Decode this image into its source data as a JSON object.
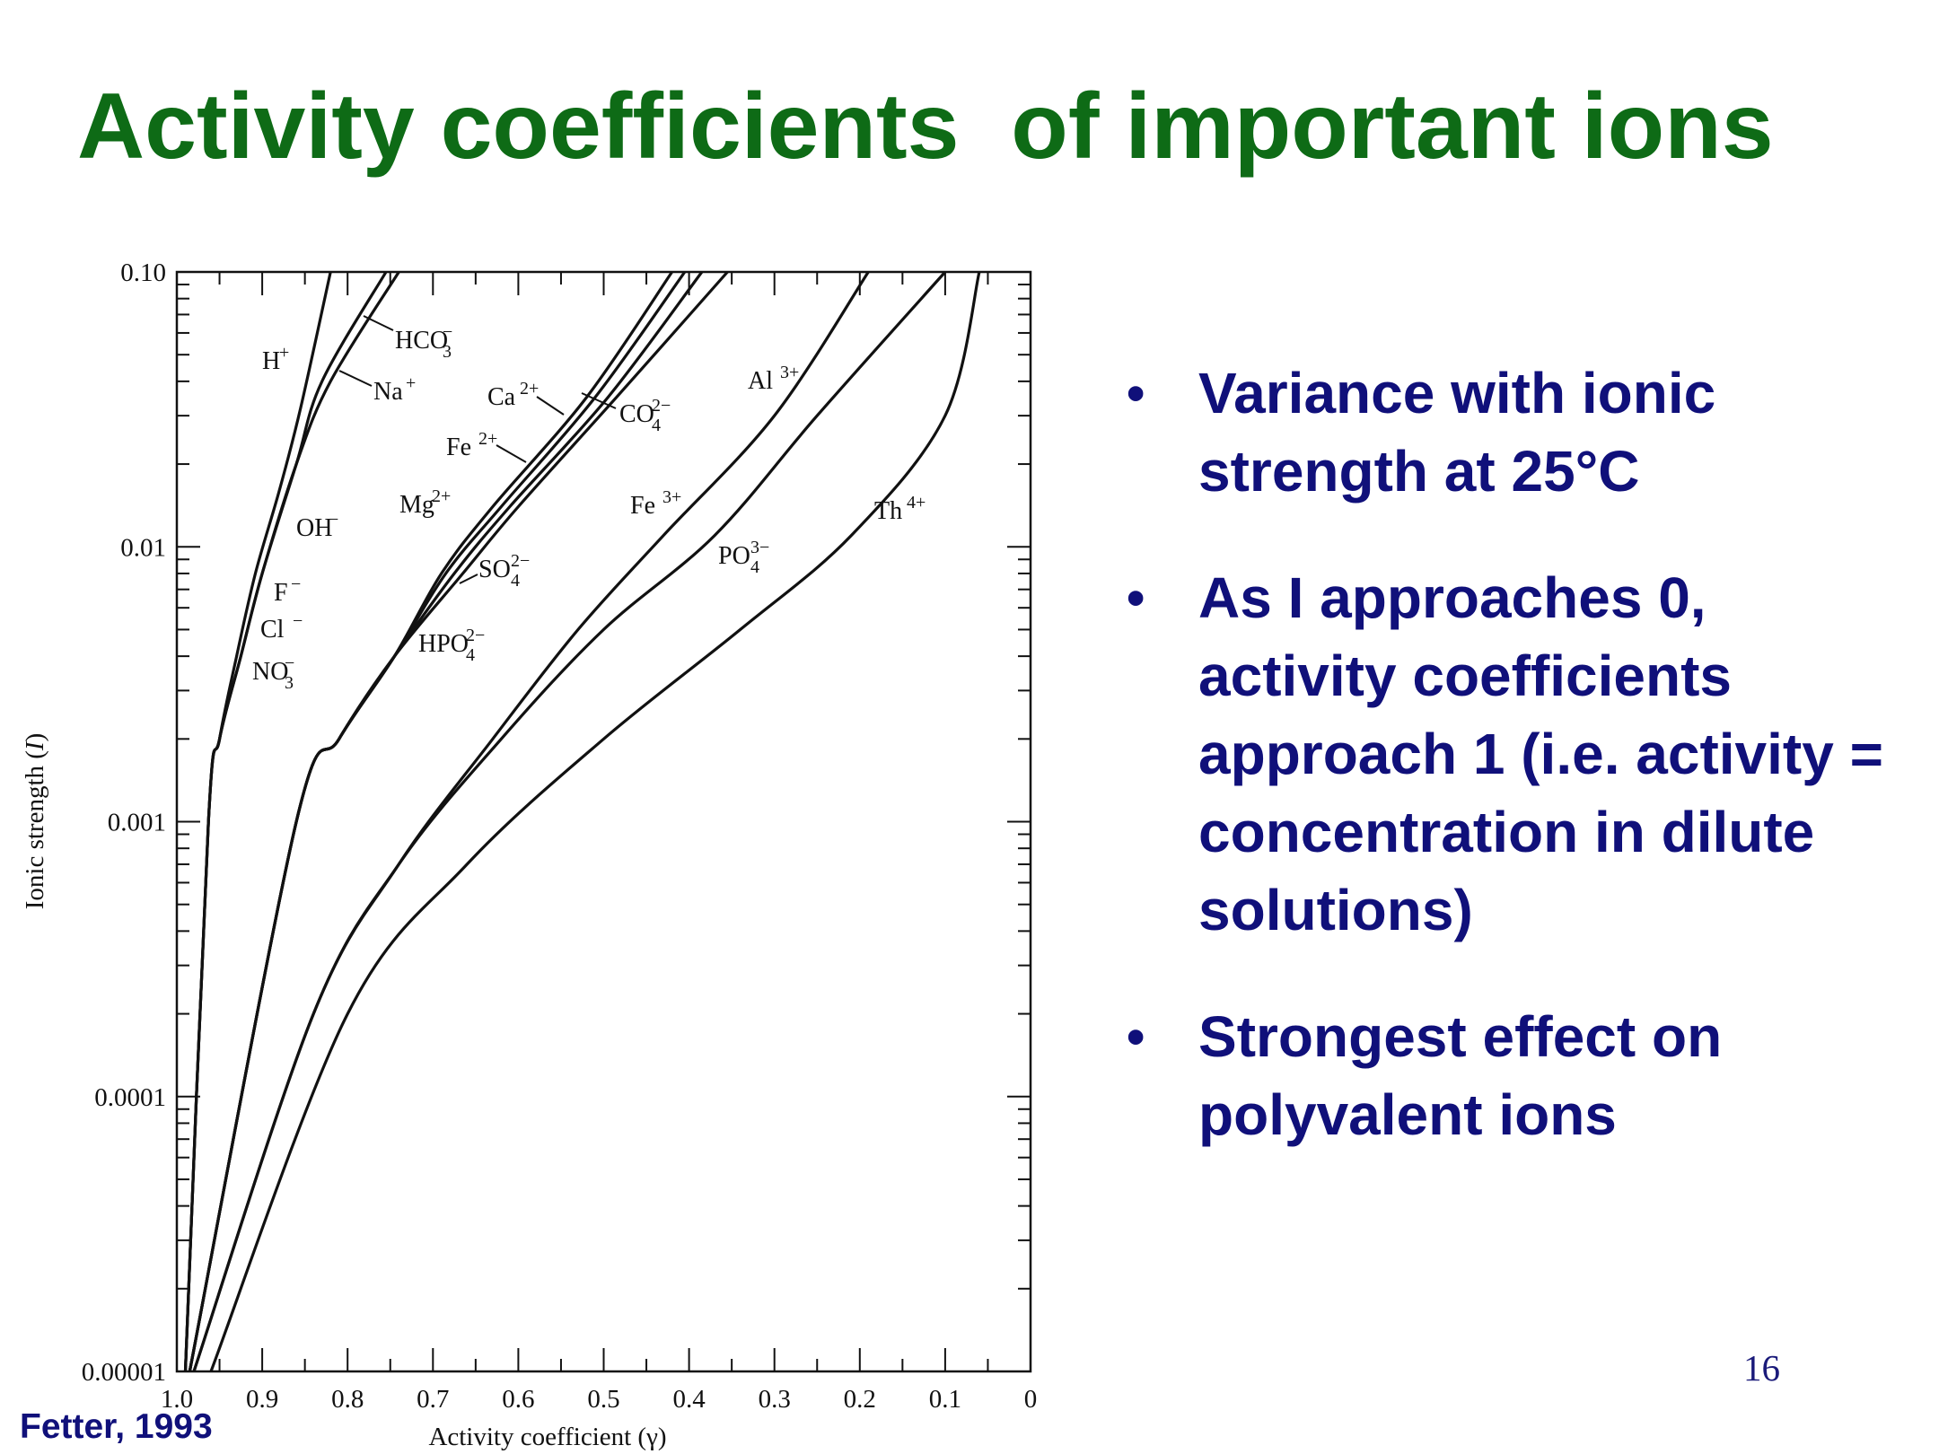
{
  "slide": {
    "title": "Activity coefficients  of important ions",
    "bullets": [
      "Variance with ionic strength at 25°C",
      "As I approaches 0, activity coefficients approach 1 (i.e. activity = concentration in dilute solutions)",
      "Strongest effect on polyvalent ions"
    ],
    "citation": "Fetter, 1993",
    "page_number": "16",
    "title_color": "#0e6b16",
    "text_color": "#10107a"
  },
  "chart_data": {
    "type": "line",
    "title": "",
    "xlabel": "Activity coefficient (γ)",
    "ylabel": "Ionic strength (I)",
    "xlim": [
      1.0,
      0
    ],
    "x_reversed": true,
    "ylim": [
      1e-05,
      0.1
    ],
    "y_scale": "log",
    "x_ticks": [
      "1.0",
      "0.9",
      "0.8",
      "0.7",
      "0.6",
      "0.5",
      "0.4",
      "0.3",
      "0.2",
      "0.1",
      "0"
    ],
    "y_ticks": [
      "0.00001",
      "0.0001",
      "0.001",
      "0.01",
      "0.10"
    ],
    "y_tick_values": [
      1e-05,
      0.0001,
      0.001,
      0.01,
      0.1
    ],
    "grid": false,
    "series": [
      {
        "name": "H⁺",
        "x": [
          0.99,
          0.963,
          0.95,
          0.93,
          0.908,
          0.88,
          0.855,
          0.82
        ],
        "y": [
          1e-05,
          0.001,
          0.002,
          0.004,
          0.008,
          0.016,
          0.032,
          0.1
        ]
      },
      {
        "name": "OH⁻, F⁻, Cl⁻, NO₃⁻, HCO₃⁻",
        "x": [
          0.99,
          0.963,
          0.95,
          0.925,
          0.9,
          0.86,
          0.83,
          0.755
        ],
        "y": [
          1e-05,
          0.001,
          0.002,
          0.004,
          0.008,
          0.02,
          0.04,
          0.1
        ]
      },
      {
        "name": "Na⁺",
        "x": [
          0.99,
          0.963,
          0.95,
          0.925,
          0.9,
          0.86,
          0.82,
          0.74
        ],
        "y": [
          1e-05,
          0.001,
          0.002,
          0.004,
          0.008,
          0.02,
          0.04,
          0.1
        ]
      },
      {
        "name": "Ca²⁺",
        "x": [
          0.985,
          0.86,
          0.81,
          0.745,
          0.69,
          0.63,
          0.52,
          0.42
        ],
        "y": [
          1e-05,
          0.001,
          0.002,
          0.004,
          0.008,
          0.014,
          0.035,
          0.1
        ]
      },
      {
        "name": "Fe²⁺",
        "x": [
          0.985,
          0.86,
          0.81,
          0.745,
          0.685,
          0.62,
          0.51,
          0.405
        ],
        "y": [
          1e-05,
          0.001,
          0.002,
          0.004,
          0.008,
          0.014,
          0.035,
          0.1
        ]
      },
      {
        "name": "Mg²⁺, SO₄²⁻, HPO₄²⁻",
        "x": [
          0.985,
          0.86,
          0.81,
          0.745,
          0.675,
          0.61,
          0.495,
          0.385
        ],
        "y": [
          1e-05,
          0.001,
          0.002,
          0.004,
          0.008,
          0.014,
          0.035,
          0.1
        ]
      },
      {
        "name": "CO₄²⁻",
        "x": [
          0.985,
          0.86,
          0.81,
          0.745,
          0.665,
          0.6,
          0.485,
          0.355
        ],
        "y": [
          1e-05,
          0.001,
          0.002,
          0.004,
          0.008,
          0.014,
          0.035,
          0.1
        ]
      },
      {
        "name": "Al³⁺",
        "x": [
          0.98,
          0.84,
          0.74,
          0.63,
          0.53,
          0.43,
          0.3,
          0.19
        ],
        "y": [
          1e-05,
          0.0002,
          0.0007,
          0.002,
          0.005,
          0.011,
          0.03,
          0.1
        ]
      },
      {
        "name": "Fe³⁺, PO₄³⁻",
        "x": [
          0.98,
          0.84,
          0.74,
          0.62,
          0.5,
          0.37,
          0.25,
          0.1
        ],
        "y": [
          1e-05,
          0.0002,
          0.0007,
          0.002,
          0.005,
          0.011,
          0.03,
          0.1
        ]
      },
      {
        "name": "Th⁴⁺",
        "x": [
          0.96,
          0.8,
          0.66,
          0.5,
          0.34,
          0.21,
          0.1,
          0.06
        ],
        "y": [
          1e-05,
          0.0002,
          0.0007,
          0.002,
          0.005,
          0.011,
          0.03,
          0.1
        ]
      }
    ],
    "labels": [
      {
        "base": "H",
        "sup": "+",
        "sub": ""
      },
      {
        "base": "HCO",
        "sup": "−",
        "sub": "3"
      },
      {
        "base": "Na",
        "sup": "+",
        "sub": ""
      },
      {
        "base": "Ca",
        "sup": "2+",
        "sub": ""
      },
      {
        "base": "CO",
        "sup": "2−",
        "sub": "4"
      },
      {
        "base": "Al",
        "sup": "3+",
        "sub": ""
      },
      {
        "base": "Fe",
        "sup": "2+",
        "sub": ""
      },
      {
        "base": "Mg",
        "sup": "2+",
        "sub": ""
      },
      {
        "base": "Fe",
        "sup": "3+",
        "sub": ""
      },
      {
        "base": "Th",
        "sup": "4+",
        "sub": ""
      },
      {
        "base": "OH",
        "sup": "−",
        "sub": ""
      },
      {
        "base": "F",
        "sup": "−",
        "sub": ""
      },
      {
        "base": "Cl",
        "sup": "−",
        "sub": ""
      },
      {
        "base": "NO",
        "sup": "−",
        "sub": "3"
      },
      {
        "base": "SO",
        "sup": "2−",
        "sub": "4"
      },
      {
        "base": "HPO",
        "sup": "2−",
        "sub": "4"
      },
      {
        "base": "PO",
        "sup": "3−",
        "sub": "4"
      }
    ]
  }
}
